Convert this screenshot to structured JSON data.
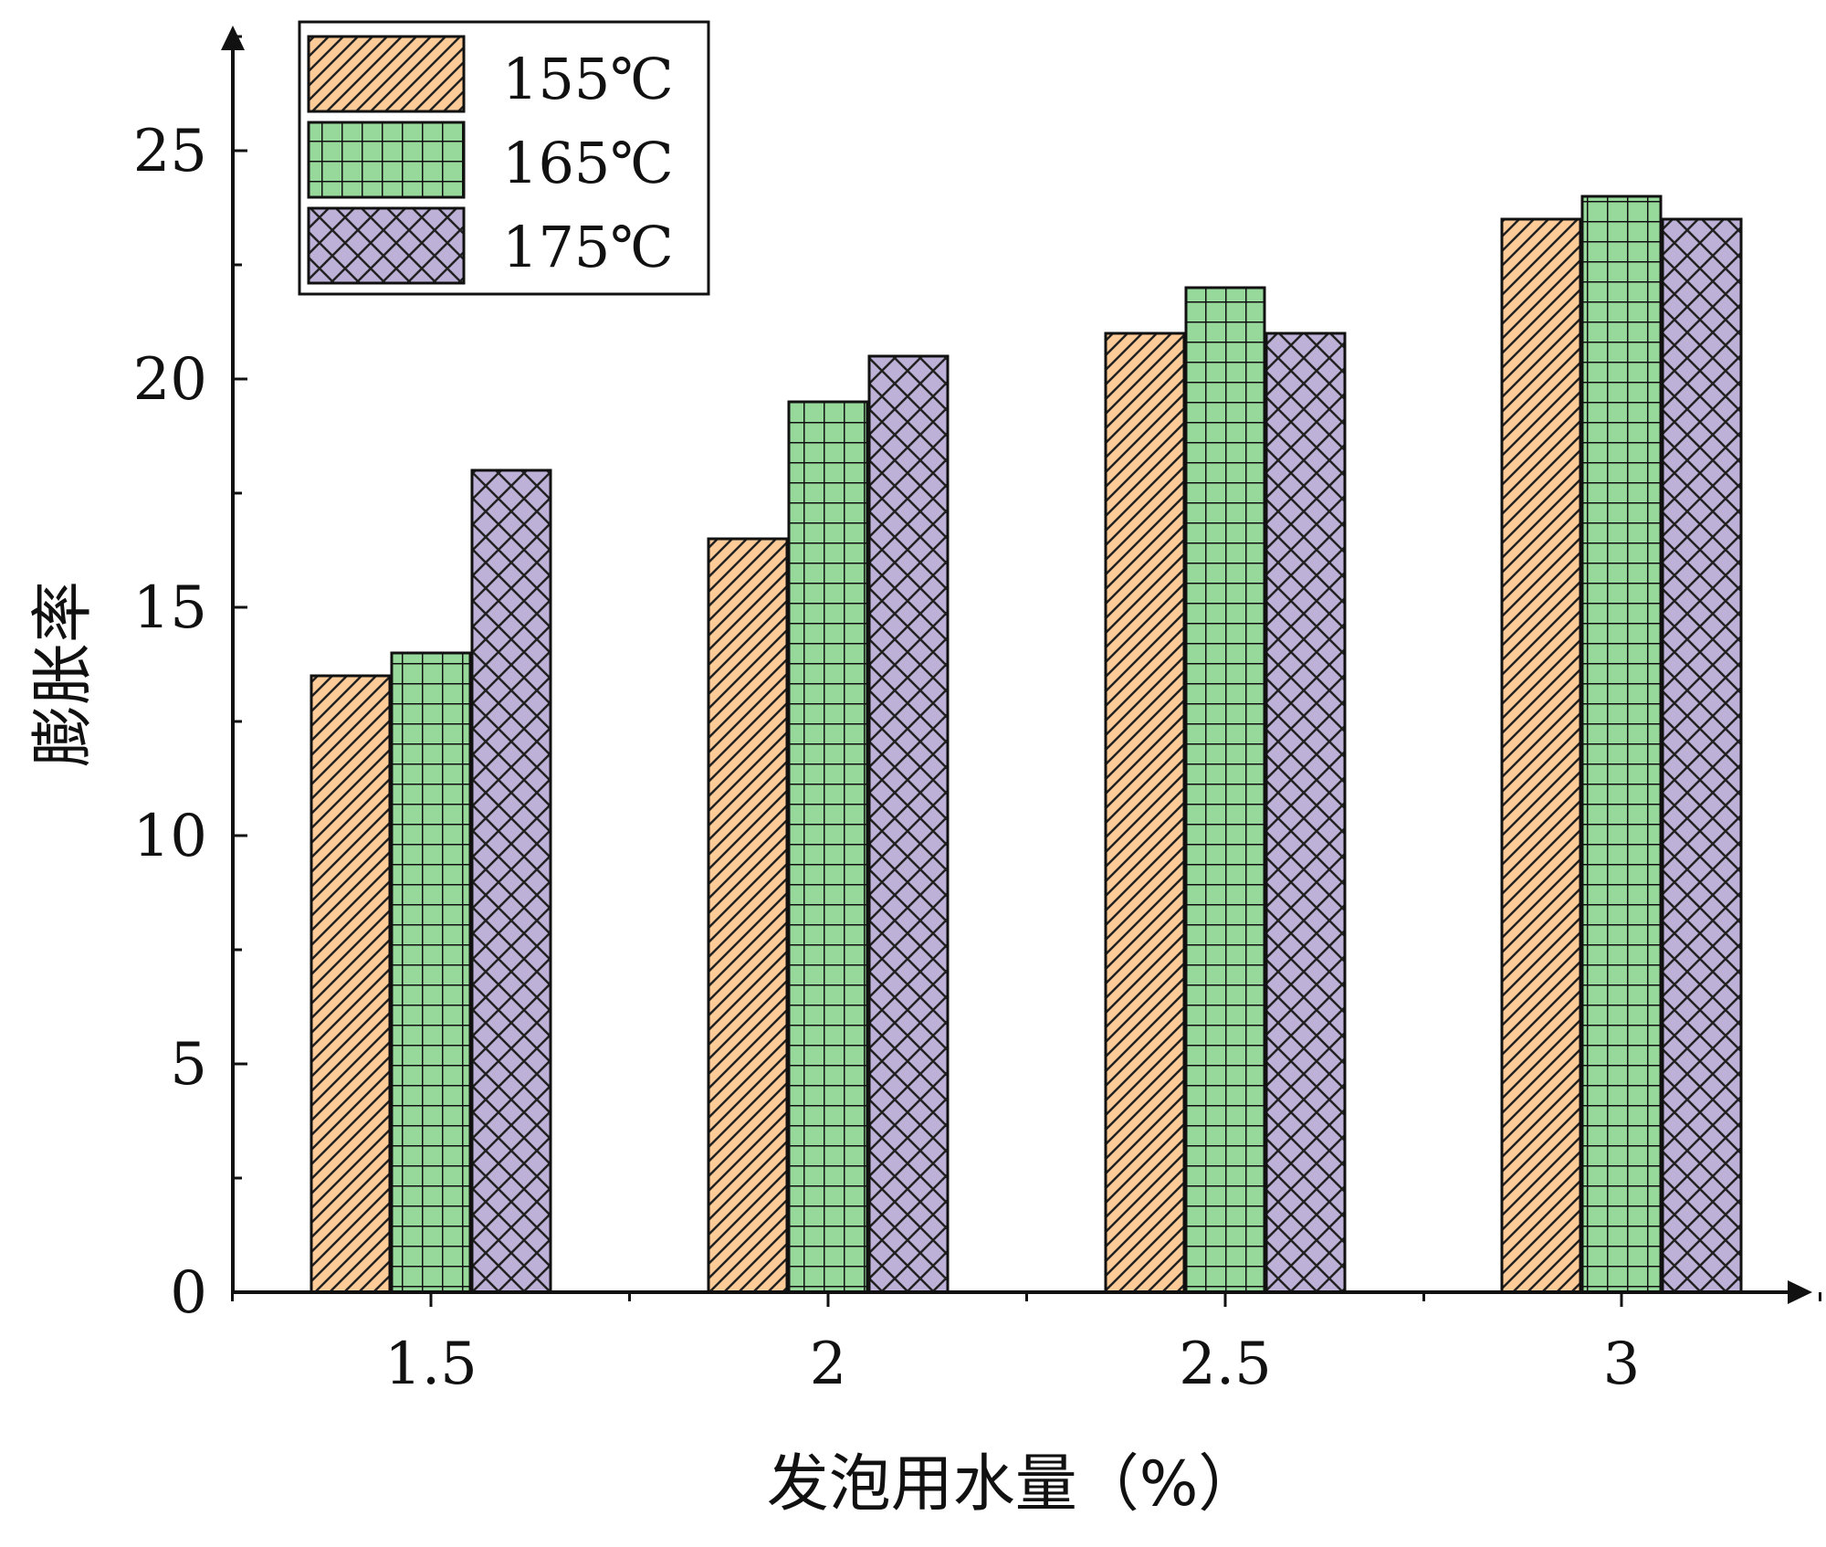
{
  "chart_data": {
    "type": "bar",
    "title": "",
    "xlabel": "发泡用水量（%）",
    "ylabel": "膨胀率",
    "categories": [
      "1.5",
      "2",
      "2.5",
      "3"
    ],
    "ylim": [
      0,
      27.5
    ],
    "yticks": [
      0,
      5,
      10,
      15,
      20,
      25
    ],
    "ytick_labels": [
      "0",
      "5",
      "10",
      "15",
      "20",
      "25"
    ],
    "grid": false,
    "legend_position": "top-left",
    "series": [
      {
        "name": "155℃",
        "values": [
          13.5,
          16.5,
          21.0,
          23.5
        ],
        "color": "#FCCB98",
        "pattern": "diagonal-hatch"
      },
      {
        "name": "165℃",
        "values": [
          14.0,
          19.5,
          22.0,
          24.0
        ],
        "color": "#96D99A",
        "pattern": "grid"
      },
      {
        "name": "175℃",
        "values": [
          18.0,
          20.5,
          21.0,
          23.5
        ],
        "color": "#BDB1D8",
        "pattern": "crosshatch"
      }
    ]
  }
}
